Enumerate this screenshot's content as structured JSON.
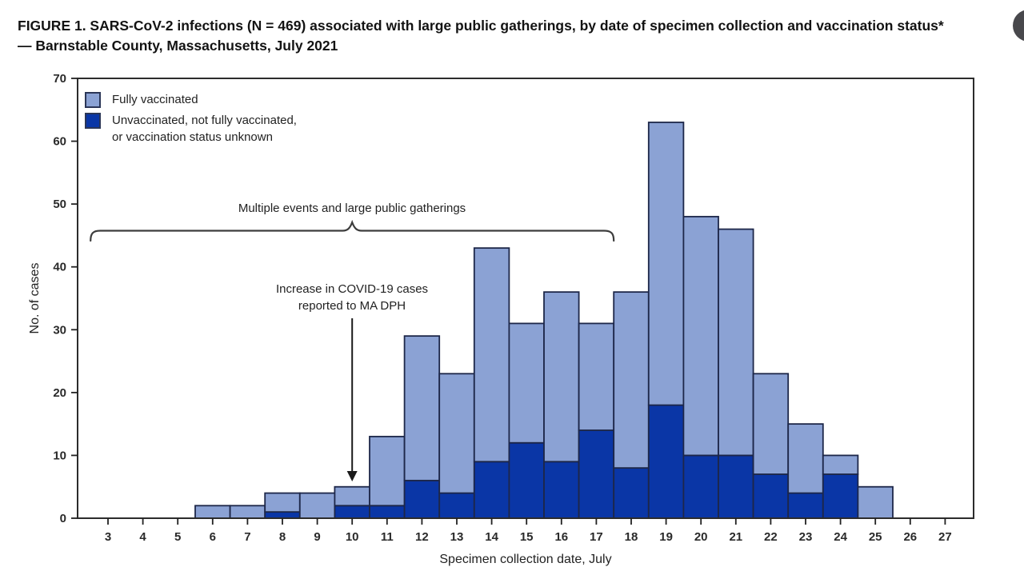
{
  "figure": {
    "title": "FIGURE 1. SARS-CoV-2 infections (N = 469) associated with large public gatherings, by date of specimen collection and vaccination status* — Barnstable County, Massachusetts, July 2021"
  },
  "legend": {
    "items": [
      {
        "label": "Fully vaccinated",
        "color": "#8ba2d4"
      },
      {
        "label_line1": "Unvaccinated, not fully vaccinated,",
        "label_line2": "or vaccination status unknown",
        "color": "#0a36a6"
      }
    ]
  },
  "annotations": {
    "brace_label": "Multiple events and large public gatherings",
    "arrow_label_line1": "Increase in COVID-19 cases",
    "arrow_label_line2": "reported to MA DPH"
  },
  "axes": {
    "ylabel": "No. of cases",
    "xlabel": "Specimen collection date, July",
    "y_ticks": [
      0,
      10,
      20,
      30,
      40,
      50,
      60,
      70
    ],
    "x_ticks": [
      3,
      4,
      5,
      6,
      7,
      8,
      9,
      10,
      11,
      12,
      13,
      14,
      15,
      16,
      17,
      18,
      19,
      20,
      21,
      22,
      23,
      24,
      25,
      26,
      27
    ]
  },
  "icons": {
    "edge_circle": "dark-circle-clipped-at-right-edge"
  },
  "chart_data": {
    "type": "bar",
    "stacked": true,
    "title": "FIGURE 1. SARS-CoV-2 infections (N = 469) associated with large public gatherings, by date of specimen collection and vaccination status* — Barnstable County, Massachusetts, July 2021",
    "xlabel": "Specimen collection date, July",
    "ylabel": "No. of cases",
    "ylim": [
      0,
      70
    ],
    "grid": false,
    "legend_position": "top-left",
    "bar_outline_color": "#1d2749",
    "categories": [
      3,
      4,
      5,
      6,
      7,
      8,
      9,
      10,
      11,
      12,
      13,
      14,
      15,
      16,
      17,
      18,
      19,
      20,
      21,
      22,
      23,
      24,
      25,
      26,
      27
    ],
    "series": [
      {
        "name": "Unvaccinated, not fully vaccinated, or vaccination status unknown",
        "color": "#0a36a6",
        "values": [
          0,
          0,
          0,
          0,
          0,
          1,
          0,
          2,
          2,
          6,
          4,
          9,
          12,
          9,
          14,
          8,
          18,
          10,
          10,
          7,
          4,
          7,
          0,
          0,
          0
        ]
      },
      {
        "name": "Fully vaccinated",
        "color": "#8ba2d4",
        "values": [
          0,
          0,
          0,
          2,
          2,
          3,
          4,
          3,
          11,
          23,
          19,
          34,
          19,
          27,
          17,
          28,
          45,
          38,
          36,
          16,
          11,
          3,
          5,
          0,
          0
        ]
      }
    ],
    "totals": [
      0,
      0,
      0,
      2,
      2,
      4,
      4,
      5,
      13,
      29,
      23,
      43,
      31,
      36,
      31,
      36,
      63,
      48,
      46,
      23,
      15,
      10,
      5,
      0,
      0
    ],
    "annotations": [
      {
        "type": "brace",
        "label": "Multiple events and large public gatherings",
        "x_from": 2.5,
        "x_to": 17.5
      },
      {
        "type": "arrow",
        "label": "Increase in COVID-19 cases reported to MA DPH",
        "x": 10
      }
    ]
  }
}
